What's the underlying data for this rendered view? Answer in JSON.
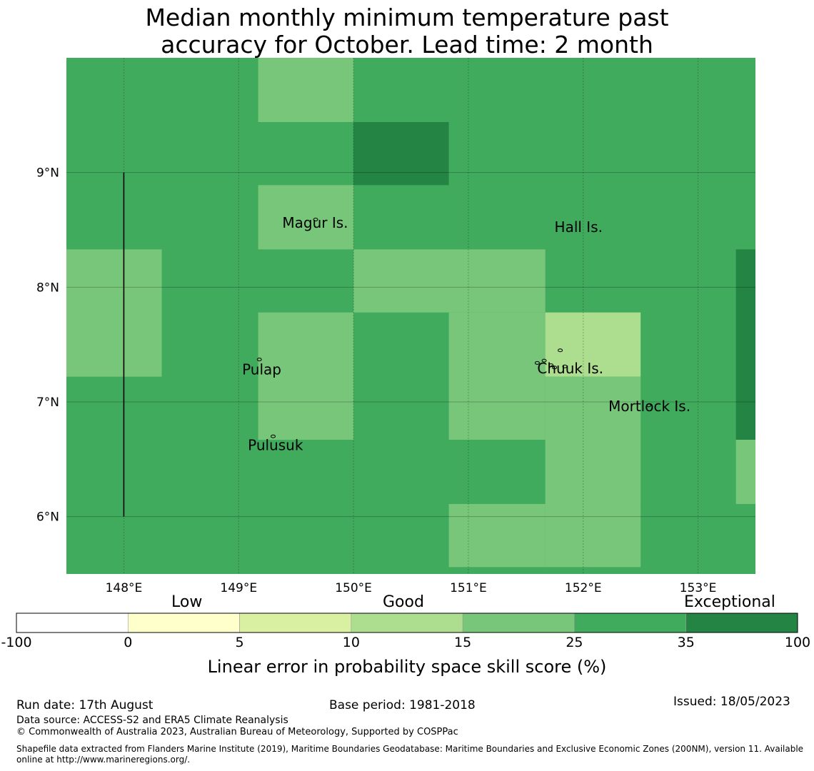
{
  "title": {
    "line1": "Median monthly minimum temperature past",
    "line2": "accuracy for October. Lead time: 2 month"
  },
  "map": {
    "lon_range": [
      147.5,
      153.5
    ],
    "lat_range": [
      5.5,
      10.0
    ],
    "lon_ticks": [
      {
        "value": 148,
        "label": "148°E"
      },
      {
        "value": 149,
        "label": "149°E"
      },
      {
        "value": 150,
        "label": "150°E"
      },
      {
        "value": 151,
        "label": "151°E"
      },
      {
        "value": 152,
        "label": "152°E"
      },
      {
        "value": 153,
        "label": "153°E"
      }
    ],
    "lat_ticks": [
      {
        "value": 9,
        "label": "9°N"
      },
      {
        "value": 8,
        "label": "8°N"
      },
      {
        "value": 7,
        "label": "7°N"
      },
      {
        "value": 6,
        "label": "6°N"
      }
    ],
    "grid_lines": true,
    "base_color": "#41ab5d",
    "cells": [
      {
        "lon": [
          149.17,
          150.0
        ],
        "lat": [
          9.44,
          10.0
        ],
        "color": "#78c679"
      },
      {
        "lon": [
          150.0,
          150.83
        ],
        "lat": [
          8.89,
          9.44
        ],
        "color": "#238443"
      },
      {
        "lon": [
          149.17,
          150.0
        ],
        "lat": [
          8.33,
          8.89
        ],
        "color": "#78c679"
      },
      {
        "lon": [
          147.5,
          148.33
        ],
        "lat": [
          7.22,
          8.33
        ],
        "color": "#78c679"
      },
      {
        "lon": [
          150.0,
          151.67
        ],
        "lat": [
          7.78,
          8.33
        ],
        "color": "#78c679"
      },
      {
        "lon": [
          149.17,
          150.0
        ],
        "lat": [
          6.67,
          7.78
        ],
        "color": "#78c679"
      },
      {
        "lon": [
          150.83,
          151.67
        ],
        "lat": [
          6.67,
          7.78
        ],
        "color": "#78c679"
      },
      {
        "lon": [
          151.67,
          152.5
        ],
        "lat": [
          7.22,
          7.78
        ],
        "color": "#addd8e"
      },
      {
        "lon": [
          151.67,
          152.5
        ],
        "lat": [
          6.11,
          7.22
        ],
        "color": "#78c679"
      },
      {
        "lon": [
          150.83,
          151.67
        ],
        "lat": [
          5.56,
          6.11
        ],
        "color": "#78c679"
      },
      {
        "lon": [
          151.67,
          152.5
        ],
        "lat": [
          5.56,
          6.11
        ],
        "color": "#78c679"
      },
      {
        "lon": [
          153.33,
          153.5
        ],
        "lat": [
          6.67,
          8.33
        ],
        "color": "#238443"
      },
      {
        "lon": [
          153.33,
          153.5
        ],
        "lat": [
          6.11,
          6.67
        ],
        "color": "#78c679"
      }
    ],
    "boundary_line": {
      "lon": 148.0,
      "lat": [
        6.0,
        9.0
      ]
    },
    "places": [
      {
        "name": "Magur Is.",
        "lon": 149.38,
        "lat": 8.52
      },
      {
        "name": "Hall Is.",
        "lon": 151.75,
        "lat": 8.48
      },
      {
        "name": "Pulap",
        "lon": 149.03,
        "lat": 7.24
      },
      {
        "name": "Chuuk Is.",
        "lon": 151.6,
        "lat": 7.25
      },
      {
        "name": "Mortlock Is.",
        "lon": 152.22,
        "lat": 6.92
      },
      {
        "name": "Pulusuk",
        "lon": 149.08,
        "lat": 6.58
      }
    ]
  },
  "colorbar": {
    "categories": [
      {
        "label": "Low",
        "position": "left"
      },
      {
        "label": "Good",
        "position": "center"
      },
      {
        "label": "Exceptional",
        "position": "right"
      }
    ],
    "bins": [
      {
        "from": -100,
        "to": 0,
        "color": "#ffffff"
      },
      {
        "from": 0,
        "to": 5,
        "color": "#ffffcc"
      },
      {
        "from": 5,
        "to": 10,
        "color": "#d9f0a3"
      },
      {
        "from": 10,
        "to": 15,
        "color": "#addd8e"
      },
      {
        "from": 15,
        "to": 25,
        "color": "#78c679"
      },
      {
        "from": 25,
        "to": 35,
        "color": "#41ab5d"
      },
      {
        "from": 35,
        "to": 100,
        "color": "#238443"
      }
    ],
    "tick_labels": [
      "-100",
      "0",
      "5",
      "10",
      "15",
      "25",
      "35",
      "100"
    ],
    "title": "Linear error in probability space skill score (%)"
  },
  "footer": {
    "run_date": "Run date: 17th August",
    "base_period": "Base period: 1981-2018",
    "issued": "Issued: 18/05/2023",
    "data_source": "Data source: ACCESS-S2 and ERA5 Climate Reanalysis",
    "copyright": "© Commonwealth of Australia 2023, Australian Bureau of Meteorology, Supported by COSPPac",
    "shapefile_line1": "Shapefile data extracted from Flanders Marine Institute (2019), Maritime Boundaries Geodatabase: Maritime Boundaries and Exclusive Economic Zones (200NM), version 11. Available",
    "shapefile_line2": "online at http://www.marineregions.org/."
  }
}
